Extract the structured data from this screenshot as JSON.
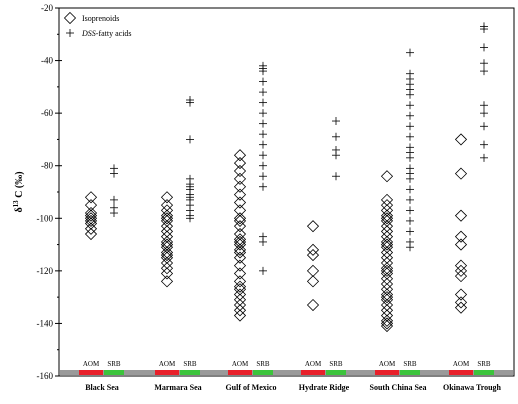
{
  "chart_data": {
    "type": "scatter",
    "ylabel_parts": {
      "delta": "δ",
      "sup": "13",
      "rest": "C (‰)"
    },
    "ylim": [
      -160,
      -20
    ],
    "yticks": [
      -20,
      -40,
      -60,
      -80,
      -100,
      -120,
      -140,
      -160
    ],
    "categories": [
      "Black Sea",
      "Marmara Sea",
      "Gulf of Mexico",
      "Hydrate Ridge",
      "South China Sea",
      "Okinawa Trough"
    ],
    "strip_labels": {
      "aom": "AOM",
      "srb": "SRB"
    },
    "strip_colors": {
      "aom": "#e8202a",
      "srb": "#3cc43c",
      "base": "#9a9a9a"
    },
    "legend": {
      "position": "top-left",
      "items": [
        {
          "marker": "diamond",
          "label": "Isoprenoids",
          "italic_part": "",
          "rest": "Isoprenoids"
        },
        {
          "marker": "plus",
          "label": "DSS-fatty acids",
          "italic_part": "DSS",
          "rest": "-fatty acids"
        }
      ]
    },
    "series": [
      {
        "name": "Isoprenoids",
        "marker": "diamond",
        "values": [
          [
            -92,
            -95,
            -98,
            -99,
            -100,
            -101,
            -102,
            -104,
            -106
          ],
          [
            -92,
            -95,
            -97,
            -99,
            -101,
            -103,
            -105,
            -107,
            -109,
            -111,
            -113,
            -115,
            -117,
            -119,
            -121,
            -124,
            -114,
            -110,
            -100
          ],
          [
            -76,
            -79,
            -82,
            -85,
            -88,
            -91,
            -94,
            -97,
            -100,
            -103,
            -106,
            -109,
            -110,
            -112,
            -115,
            -118,
            -121,
            -124,
            -127,
            -129,
            -131,
            -133,
            -135,
            -137,
            -101,
            -108,
            -113,
            -126
          ],
          [
            -103,
            -112,
            -114,
            -120,
            -124,
            -133
          ],
          [
            -84,
            -93,
            -95,
            -97,
            -99,
            -101,
            -103,
            -105,
            -107,
            -109,
            -111,
            -113,
            -115,
            -117,
            -119,
            -121,
            -123,
            -125,
            -127,
            -129,
            -131,
            -133,
            -135,
            -137,
            -139,
            -141,
            -100,
            -110,
            -120,
            -130,
            -140
          ],
          [
            -70,
            -83,
            -99,
            -107,
            -110,
            -118,
            -120,
            -122,
            -129,
            -132,
            -134
          ]
        ]
      },
      {
        "name": "DSS-fatty acids",
        "marker": "plus",
        "values": [
          [
            -81,
            -83,
            -93,
            -96,
            -98
          ],
          [
            -55,
            -56,
            -70,
            -85,
            -87,
            -89,
            -91,
            -93,
            -95,
            -97,
            -99,
            -100,
            -88,
            -92
          ],
          [
            -42,
            -43,
            -44,
            -48,
            -52,
            -56,
            -60,
            -64,
            -68,
            -72,
            -76,
            -80,
            -84,
            -88,
            -107,
            -109,
            -120
          ],
          [
            -63,
            -69,
            -74,
            -76,
            -84
          ],
          [
            -37,
            -45,
            -47,
            -49,
            -51,
            -53,
            -57,
            -61,
            -65,
            -69,
            -73,
            -77,
            -81,
            -85,
            -89,
            -93,
            -97,
            -101,
            -105,
            -109,
            -111,
            -75,
            -83
          ],
          [
            -27,
            -28,
            -35,
            -41,
            -44,
            -57,
            -60,
            -65,
            -72,
            -77
          ]
        ]
      }
    ]
  }
}
